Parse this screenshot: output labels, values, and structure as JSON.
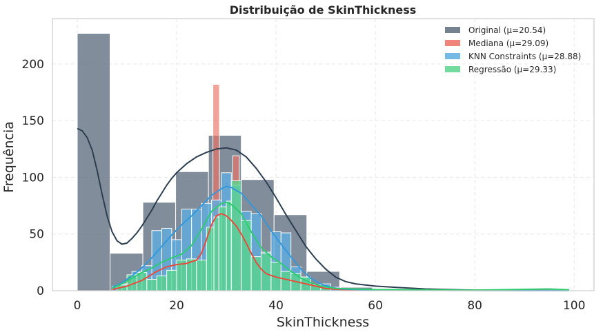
{
  "chart_data": {
    "type": "histogram",
    "title": "Distribuição de SkinThickness",
    "xlabel": "SkinThickness",
    "ylabel": "Frequência",
    "xlim": [
      -5,
      104
    ],
    "ylim": [
      0,
      240
    ],
    "xticks": [
      0,
      20,
      40,
      60,
      80,
      100
    ],
    "yticks": [
      0,
      50,
      100,
      150,
      200
    ],
    "grid": true,
    "legend_position": "top-right",
    "series": [
      {
        "name": "Original (μ=20.54)",
        "color": "#5d6d7e",
        "opacity": 0.78,
        "bins": [
          {
            "x0": 0,
            "x1": 6.6,
            "count": 227
          },
          {
            "x0": 6.6,
            "x1": 13.2,
            "count": 33
          },
          {
            "x0": 13.2,
            "x1": 19.8,
            "count": 78
          },
          {
            "x0": 19.8,
            "x1": 26.4,
            "count": 105
          },
          {
            "x0": 26.4,
            "x1": 33.0,
            "count": 137
          },
          {
            "x0": 33.0,
            "x1": 39.6,
            "count": 98
          },
          {
            "x0": 39.6,
            "x1": 46.2,
            "count": 67
          },
          {
            "x0": 46.2,
            "x1": 52.8,
            "count": 17
          },
          {
            "x0": 52.8,
            "x1": 59.4,
            "count": 3
          },
          {
            "x0": 92.4,
            "x1": 99,
            "count": 1
          }
        ],
        "kde": [
          [
            0,
            143
          ],
          [
            1,
            141
          ],
          [
            2,
            135
          ],
          [
            3,
            124
          ],
          [
            4,
            106
          ],
          [
            5,
            85
          ],
          [
            6,
            66
          ],
          [
            7,
            52
          ],
          [
            8,
            44
          ],
          [
            9,
            41
          ],
          [
            10,
            42
          ],
          [
            11,
            46
          ],
          [
            12,
            51
          ],
          [
            13,
            57
          ],
          [
            14,
            64
          ],
          [
            15,
            71
          ],
          [
            16,
            79
          ],
          [
            17,
            86
          ],
          [
            18,
            93
          ],
          [
            19,
            99
          ],
          [
            20,
            104
          ],
          [
            22,
            112
          ],
          [
            24,
            118
          ],
          [
            26,
            122
          ],
          [
            28,
            125
          ],
          [
            30,
            126
          ],
          [
            32,
            124
          ],
          [
            34,
            118
          ],
          [
            36,
            108
          ],
          [
            38,
            96
          ],
          [
            40,
            82
          ],
          [
            42,
            67
          ],
          [
            44,
            53
          ],
          [
            46,
            39
          ],
          [
            48,
            28
          ],
          [
            50,
            19
          ],
          [
            52,
            12
          ],
          [
            54,
            8
          ],
          [
            56,
            6
          ],
          [
            58,
            5
          ],
          [
            60,
            4
          ],
          [
            64,
            3
          ],
          [
            70,
            1.5
          ],
          [
            80,
            0.5
          ],
          [
            99,
            0
          ]
        ]
      },
      {
        "name": "Mediana (μ=29.09)",
        "color": "#ec7063",
        "opacity": 0.65,
        "bins": [
          {
            "x0": 27.3,
            "x1": 28.6,
            "count": 182
          },
          {
            "x0": 31.3,
            "x1": 32.6,
            "count": 119
          }
        ],
        "kde": [
          [
            7,
            1
          ],
          [
            10,
            4
          ],
          [
            13,
            9
          ],
          [
            16,
            17
          ],
          [
            18,
            21
          ],
          [
            20,
            23
          ],
          [
            22,
            24
          ],
          [
            24,
            27
          ],
          [
            25,
            33
          ],
          [
            26,
            45
          ],
          [
            27,
            58
          ],
          [
            28,
            66
          ],
          [
            29,
            68
          ],
          [
            30,
            66
          ],
          [
            31,
            62
          ],
          [
            32,
            57
          ],
          [
            33,
            50
          ],
          [
            34,
            42
          ],
          [
            35,
            33
          ],
          [
            36,
            25
          ],
          [
            37,
            19
          ],
          [
            38,
            15
          ],
          [
            40,
            12
          ],
          [
            42,
            10
          ],
          [
            44,
            8
          ],
          [
            46,
            6
          ],
          [
            48,
            4
          ],
          [
            50,
            2
          ],
          [
            53,
            1
          ],
          [
            60,
            0.5
          ],
          [
            99,
            0
          ]
        ]
      },
      {
        "name": "KNN Constraints (μ=28.88)",
        "color": "#5dade2",
        "opacity": 0.78,
        "bins": [
          {
            "x0": 7,
            "x1": 9,
            "count": 4
          },
          {
            "x0": 9,
            "x1": 11,
            "count": 6
          },
          {
            "x0": 11,
            "x1": 13,
            "count": 17
          },
          {
            "x0": 13,
            "x1": 15,
            "count": 22
          },
          {
            "x0": 15,
            "x1": 17,
            "count": 53
          },
          {
            "x0": 17,
            "x1": 19,
            "count": 55
          },
          {
            "x0": 19,
            "x1": 21,
            "count": 45
          },
          {
            "x0": 21,
            "x1": 23,
            "count": 72
          },
          {
            "x0": 23,
            "x1": 25,
            "count": 72
          },
          {
            "x0": 25,
            "x1": 27,
            "count": 77
          },
          {
            "x0": 27,
            "x1": 29,
            "count": 80
          },
          {
            "x0": 29,
            "x1": 31,
            "count": 104
          },
          {
            "x0": 31,
            "x1": 33,
            "count": 93
          },
          {
            "x0": 33,
            "x1": 35,
            "count": 70
          },
          {
            "x0": 35,
            "x1": 37,
            "count": 68
          },
          {
            "x0": 37,
            "x1": 39,
            "count": 34
          },
          {
            "x0": 39,
            "x1": 41,
            "count": 52
          },
          {
            "x0": 41,
            "x1": 43,
            "count": 51
          },
          {
            "x0": 43,
            "x1": 45,
            "count": 21
          },
          {
            "x0": 45,
            "x1": 47,
            "count": 12
          },
          {
            "x0": 47,
            "x1": 49,
            "count": 5
          },
          {
            "x0": 49,
            "x1": 51,
            "count": 6
          },
          {
            "x0": 51,
            "x1": 53,
            "count": 3
          }
        ],
        "kde": [
          [
            7,
            3
          ],
          [
            9,
            7
          ],
          [
            11,
            13
          ],
          [
            13,
            20
          ],
          [
            15,
            29
          ],
          [
            17,
            39
          ],
          [
            19,
            49
          ],
          [
            21,
            58
          ],
          [
            23,
            66
          ],
          [
            25,
            75
          ],
          [
            27,
            84
          ],
          [
            29,
            90
          ],
          [
            30,
            92
          ],
          [
            31,
            91
          ],
          [
            33,
            86
          ],
          [
            35,
            76
          ],
          [
            37,
            66
          ],
          [
            39,
            53
          ],
          [
            41,
            41
          ],
          [
            43,
            30
          ],
          [
            45,
            19
          ],
          [
            47,
            11
          ],
          [
            49,
            6
          ],
          [
            51,
            3
          ],
          [
            53,
            1.5
          ],
          [
            60,
            0.5
          ],
          [
            99,
            0
          ]
        ]
      },
      {
        "name": "Regressão (μ=29.33)",
        "color": "#58d68d",
        "opacity": 0.78,
        "bins": [
          {
            "x0": 8,
            "x1": 10,
            "count": 5
          },
          {
            "x0": 10,
            "x1": 12,
            "count": 14
          },
          {
            "x0": 12,
            "x1": 14,
            "count": 16
          },
          {
            "x0": 14,
            "x1": 16,
            "count": 10
          },
          {
            "x0": 16,
            "x1": 18,
            "count": 13
          },
          {
            "x0": 18,
            "x1": 20,
            "count": 18
          },
          {
            "x0": 20,
            "x1": 22,
            "count": 27
          },
          {
            "x0": 22,
            "x1": 24,
            "count": 28
          },
          {
            "x0": 24,
            "x1": 26,
            "count": 27
          },
          {
            "x0": 26,
            "x1": 27.5,
            "count": 56
          },
          {
            "x0": 27.5,
            "x1": 28.5,
            "count": 65
          },
          {
            "x0": 28.5,
            "x1": 30,
            "count": 74
          },
          {
            "x0": 30,
            "x1": 31,
            "count": 79
          },
          {
            "x0": 31,
            "x1": 33,
            "count": 97
          },
          {
            "x0": 33,
            "x1": 35,
            "count": 62
          },
          {
            "x0": 35,
            "x1": 37,
            "count": 30
          },
          {
            "x0": 37,
            "x1": 39,
            "count": 33
          },
          {
            "x0": 39,
            "x1": 41,
            "count": 25
          },
          {
            "x0": 41,
            "x1": 43,
            "count": 17
          },
          {
            "x0": 43,
            "x1": 45,
            "count": 15
          },
          {
            "x0": 45,
            "x1": 47,
            "count": 12
          },
          {
            "x0": 47,
            "x1": 49,
            "count": 5
          },
          {
            "x0": 49,
            "x1": 51,
            "count": 3
          },
          {
            "x0": 97.5,
            "x1": 99,
            "count": 1
          }
        ],
        "kde": [
          [
            7,
            2
          ],
          [
            9,
            6
          ],
          [
            11,
            11
          ],
          [
            13,
            16
          ],
          [
            15,
            20
          ],
          [
            17,
            25
          ],
          [
            19,
            29
          ],
          [
            21,
            32
          ],
          [
            23,
            40
          ],
          [
            25,
            54
          ],
          [
            27,
            70
          ],
          [
            29,
            77
          ],
          [
            30,
            78
          ],
          [
            31,
            76
          ],
          [
            33,
            68
          ],
          [
            35,
            52
          ],
          [
            37,
            38
          ],
          [
            39,
            30
          ],
          [
            41,
            24
          ],
          [
            43,
            17
          ],
          [
            45,
            11
          ],
          [
            47,
            7
          ],
          [
            49,
            4
          ],
          [
            52,
            2
          ],
          [
            60,
            1
          ],
          [
            80,
            0.5
          ],
          [
            95,
            1.5
          ],
          [
            99,
            0.8
          ]
        ]
      }
    ]
  }
}
